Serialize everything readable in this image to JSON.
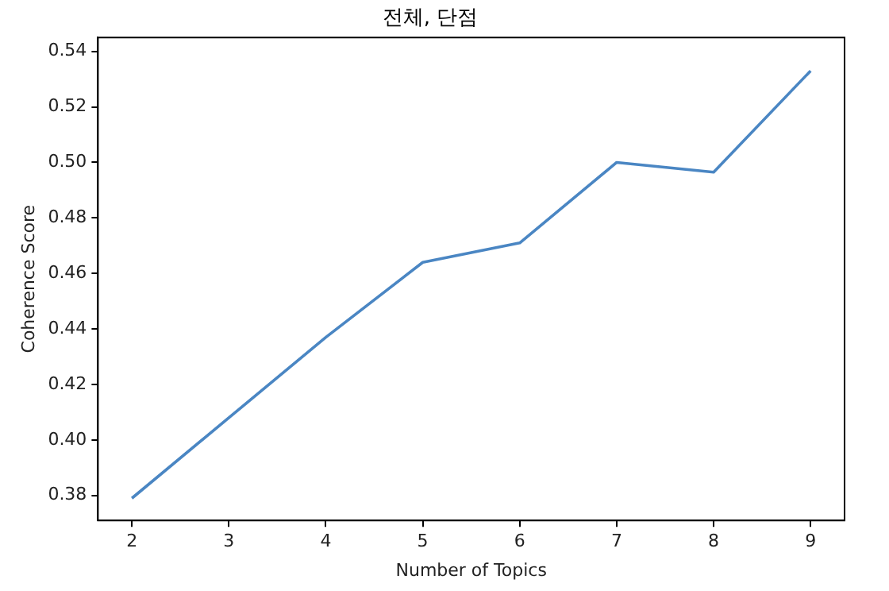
{
  "chart_data": {
    "type": "line",
    "title": "전체, 단점",
    "xlabel": "Number of Topics",
    "ylabel": "Coherence Score",
    "x": [
      2,
      3,
      4,
      5,
      6,
      7,
      8,
      9
    ],
    "series": [
      {
        "color": "#4a86c3",
        "values": [
          0.379,
          0.408,
          0.437,
          0.464,
          0.471,
          0.5,
          0.4965,
          0.533
        ]
      }
    ],
    "xlim": [
      1.65,
      9.35
    ],
    "xticks": [
      2,
      3,
      4,
      5,
      6,
      7,
      8,
      9
    ],
    "ylim": [
      0.371,
      0.545
    ],
    "yticks": [
      {
        "value": 0.38,
        "label": "0.38"
      },
      {
        "value": 0.4,
        "label": "0.40"
      },
      {
        "value": 0.42,
        "label": "0.42"
      },
      {
        "value": 0.44,
        "label": "0.44"
      },
      {
        "value": 0.46,
        "label": "0.46"
      },
      {
        "value": 0.48,
        "label": "0.48"
      },
      {
        "value": 0.5,
        "label": "0.50"
      },
      {
        "value": 0.52,
        "label": "0.52"
      },
      {
        "value": 0.54,
        "label": "0.54"
      }
    ],
    "grid": false,
    "legend": false,
    "marker": "none",
    "line_style": "solid"
  }
}
